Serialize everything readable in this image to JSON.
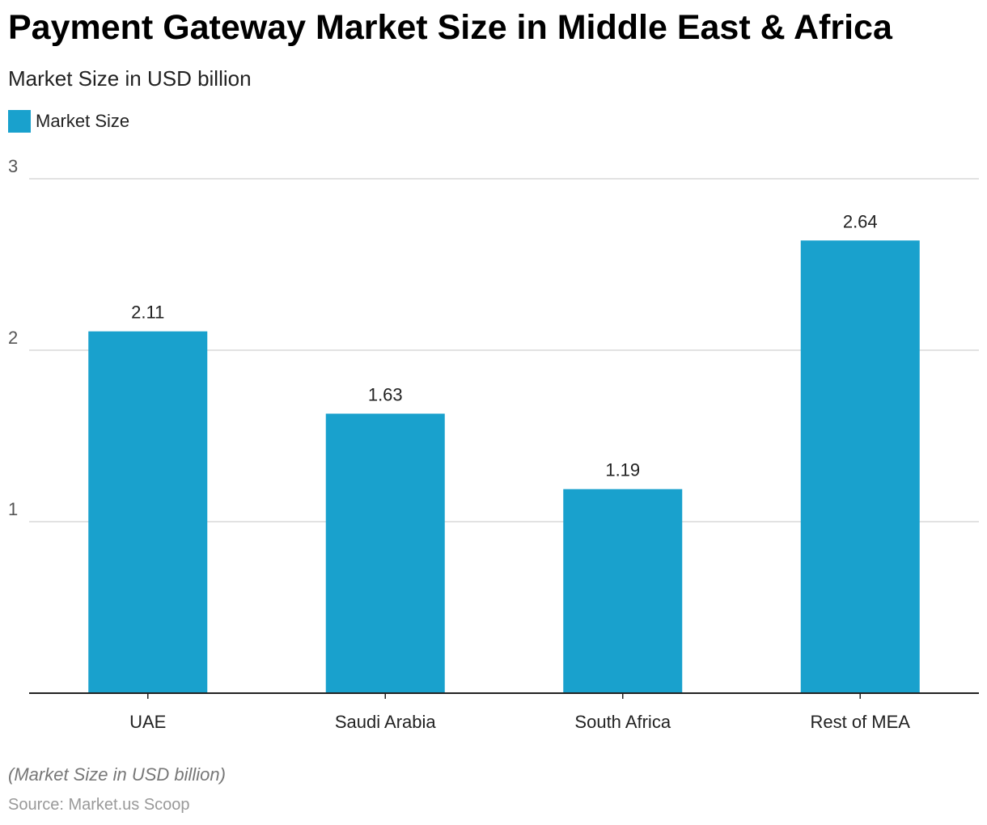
{
  "chart_data": {
    "type": "bar",
    "title": "Payment Gateway Market Size in Middle East & Africa",
    "subtitle": "Market Size in USD billion",
    "categories": [
      "UAE",
      "Saudi Arabia",
      "South Africa",
      "Rest of MEA"
    ],
    "series": [
      {
        "name": "Market Size",
        "values": [
          2.11,
          1.63,
          1.19,
          2.64
        ],
        "labels": [
          "2.11",
          "1.63",
          "1.19",
          "2.64"
        ],
        "color": "#19a1cd"
      }
    ],
    "xlabel": "",
    "ylabel": "",
    "ylim": [
      0,
      3
    ],
    "yticks": [
      1,
      2,
      3
    ],
    "ytick_labels": [
      "1",
      "2",
      "3"
    ],
    "grid": true,
    "legend_position": "top-left"
  },
  "footnote": "(Market Size in USD billion)",
  "source": "Source: Market.us Scoop",
  "colors": {
    "bar": "#19a1cd",
    "grid": "#d9d9d9",
    "axis": "#222222"
  }
}
